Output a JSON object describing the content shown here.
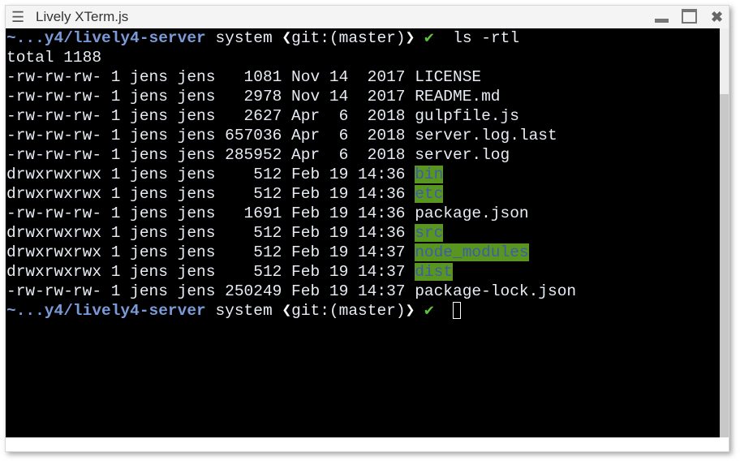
{
  "window": {
    "title": "Lively XTerm.js",
    "menu_icon": "hamburger-icon",
    "controls": [
      "minimize-icon",
      "maximize-icon",
      "close-icon"
    ]
  },
  "prompt": {
    "path": "~...y4/lively4-server",
    "host": "system",
    "git_open": "❮",
    "git": "git:(master)",
    "git_close": "❯",
    "status": "✔"
  },
  "command": "ls -rtl",
  "total": "total 1188",
  "entries": [
    {
      "perms": "-rw-rw-rw-",
      "links": "1",
      "user": "jens",
      "group": "jens",
      "size": "1081",
      "month": "Nov",
      "day": "14",
      "time": "2017",
      "name": "LICENSE",
      "dir": false
    },
    {
      "perms": "-rw-rw-rw-",
      "links": "1",
      "user": "jens",
      "group": "jens",
      "size": "2978",
      "month": "Nov",
      "day": "14",
      "time": "2017",
      "name": "README.md",
      "dir": false
    },
    {
      "perms": "-rw-rw-rw-",
      "links": "1",
      "user": "jens",
      "group": "jens",
      "size": "2627",
      "month": "Apr",
      "day": "6",
      "time": "2018",
      "name": "gulpfile.js",
      "dir": false
    },
    {
      "perms": "-rw-rw-rw-",
      "links": "1",
      "user": "jens",
      "group": "jens",
      "size": "657036",
      "month": "Apr",
      "day": "6",
      "time": "2018",
      "name": "server.log.last",
      "dir": false
    },
    {
      "perms": "-rw-rw-rw-",
      "links": "1",
      "user": "jens",
      "group": "jens",
      "size": "285952",
      "month": "Apr",
      "day": "6",
      "time": "2018",
      "name": "server.log",
      "dir": false
    },
    {
      "perms": "drwxrwxrwx",
      "links": "1",
      "user": "jens",
      "group": "jens",
      "size": "512",
      "month": "Feb",
      "day": "19",
      "time": "14:36",
      "name": "bin",
      "dir": true
    },
    {
      "perms": "drwxrwxrwx",
      "links": "1",
      "user": "jens",
      "group": "jens",
      "size": "512",
      "month": "Feb",
      "day": "19",
      "time": "14:36",
      "name": "etc",
      "dir": true
    },
    {
      "perms": "-rw-rw-rw-",
      "links": "1",
      "user": "jens",
      "group": "jens",
      "size": "1691",
      "month": "Feb",
      "day": "19",
      "time": "14:36",
      "name": "package.json",
      "dir": false
    },
    {
      "perms": "drwxrwxrwx",
      "links": "1",
      "user": "jens",
      "group": "jens",
      "size": "512",
      "month": "Feb",
      "day": "19",
      "time": "14:36",
      "name": "src",
      "dir": true
    },
    {
      "perms": "drwxrwxrwx",
      "links": "1",
      "user": "jens",
      "group": "jens",
      "size": "512",
      "month": "Feb",
      "day": "19",
      "time": "14:37",
      "name": "node_modules",
      "dir": true
    },
    {
      "perms": "drwxrwxrwx",
      "links": "1",
      "user": "jens",
      "group": "jens",
      "size": "512",
      "month": "Feb",
      "day": "19",
      "time": "14:37",
      "name": "dist",
      "dir": true
    },
    {
      "perms": "-rw-rw-rw-",
      "links": "1",
      "user": "jens",
      "group": "jens",
      "size": "250249",
      "month": "Feb",
      "day": "19",
      "time": "14:37",
      "name": "package-lock.json",
      "dir": false
    }
  ],
  "colors": {
    "dir_bg": "#5a961f",
    "dir_fg": "#3a5ea8",
    "path": "#7a9ad8",
    "ok": "#5fc43a"
  }
}
